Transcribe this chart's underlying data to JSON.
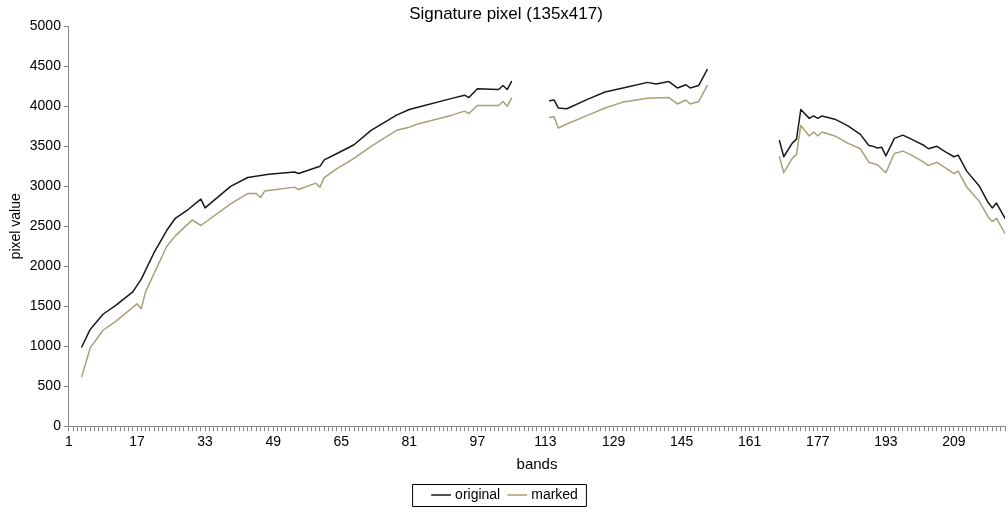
{
  "chart_data": {
    "type": "line",
    "title": "Signature pixel (135x417)",
    "xlabel": "bands",
    "ylabel": "pixel value",
    "xlim": [
      1,
      221
    ],
    "ylim": [
      0,
      5000
    ],
    "yticks": [
      0,
      500,
      1000,
      1500,
      2000,
      2500,
      3000,
      3500,
      4000,
      4500,
      5000
    ],
    "xticks": [
      1,
      {
        "value": 2,
        "label": null
      },
      {
        "value": 3,
        "label": null
      },
      {
        "value": 4,
        "label": null
      },
      {
        "value": 5,
        "label": null
      },
      {
        "value": 6,
        "label": null
      },
      {
        "value": 7,
        "label": null
      },
      {
        "value": 8,
        "label": null
      },
      {
        "value": 9,
        "label": null
      },
      {
        "value": 10,
        "label": null
      },
      {
        "value": 11,
        "label": null
      },
      {
        "value": 12,
        "label": null
      },
      {
        "value": 13,
        "label": null
      },
      {
        "value": 14,
        "label": null
      },
      {
        "value": 15,
        "label": null
      },
      {
        "value": 16,
        "label": null
      },
      17,
      {
        "value": 18,
        "label": null
      },
      {
        "value": 19,
        "label": null
      },
      {
        "value": 20,
        "label": null
      },
      {
        "value": 21,
        "label": null
      },
      {
        "value": 22,
        "label": null
      },
      {
        "value": 23,
        "label": null
      },
      {
        "value": 24,
        "label": null
      },
      {
        "value": 25,
        "label": null
      },
      {
        "value": 26,
        "label": null
      },
      {
        "value": 27,
        "label": null
      },
      {
        "value": 28,
        "label": null
      },
      {
        "value": 29,
        "label": null
      },
      {
        "value": 30,
        "label": null
      },
      {
        "value": 31,
        "label": null
      },
      {
        "value": 32,
        "label": null
      },
      33,
      {
        "value": 34,
        "label": null
      },
      {
        "value": 35,
        "label": null
      },
      {
        "value": 36,
        "label": null
      },
      {
        "value": 37,
        "label": null
      },
      {
        "value": 38,
        "label": null
      },
      {
        "value": 39,
        "label": null
      },
      {
        "value": 40,
        "label": null
      },
      {
        "value": 41,
        "label": null
      },
      {
        "value": 42,
        "label": null
      },
      {
        "value": 43,
        "label": null
      },
      {
        "value": 44,
        "label": null
      },
      {
        "value": 45,
        "label": null
      },
      {
        "value": 46,
        "label": null
      },
      {
        "value": 47,
        "label": null
      },
      {
        "value": 48,
        "label": null
      },
      49,
      {
        "value": 50,
        "label": null
      },
      {
        "value": 51,
        "label": null
      },
      {
        "value": 52,
        "label": null
      },
      {
        "value": 53,
        "label": null
      },
      {
        "value": 54,
        "label": null
      },
      {
        "value": 55,
        "label": null
      },
      {
        "value": 56,
        "label": null
      },
      {
        "value": 57,
        "label": null
      },
      {
        "value": 58,
        "label": null
      },
      {
        "value": 59,
        "label": null
      },
      {
        "value": 60,
        "label": null
      },
      {
        "value": 61,
        "label": null
      },
      {
        "value": 62,
        "label": null
      },
      {
        "value": 63,
        "label": null
      },
      {
        "value": 64,
        "label": null
      },
      65,
      {
        "value": 66,
        "label": null
      },
      {
        "value": 67,
        "label": null
      },
      {
        "value": 68,
        "label": null
      },
      {
        "value": 69,
        "label": null
      },
      {
        "value": 70,
        "label": null
      },
      {
        "value": 71,
        "label": null
      },
      {
        "value": 72,
        "label": null
      },
      {
        "value": 73,
        "label": null
      },
      {
        "value": 74,
        "label": null
      },
      {
        "value": 75,
        "label": null
      },
      {
        "value": 76,
        "label": null
      },
      {
        "value": 77,
        "label": null
      },
      {
        "value": 78,
        "label": null
      },
      {
        "value": 79,
        "label": null
      },
      {
        "value": 80,
        "label": null
      },
      81,
      {
        "value": 82,
        "label": null
      },
      {
        "value": 83,
        "label": null
      },
      {
        "value": 84,
        "label": null
      },
      {
        "value": 85,
        "label": null
      },
      {
        "value": 86,
        "label": null
      },
      {
        "value": 87,
        "label": null
      },
      {
        "value": 88,
        "label": null
      },
      {
        "value": 89,
        "label": null
      },
      {
        "value": 90,
        "label": null
      },
      {
        "value": 91,
        "label": null
      },
      {
        "value": 92,
        "label": null
      },
      {
        "value": 93,
        "label": null
      },
      {
        "value": 94,
        "label": null
      },
      {
        "value": 95,
        "label": null
      },
      {
        "value": 96,
        "label": null
      },
      97,
      {
        "value": 98,
        "label": null
      },
      {
        "value": 99,
        "label": null
      },
      {
        "value": 100,
        "label": null
      },
      {
        "value": 101,
        "label": null
      },
      {
        "value": 102,
        "label": null
      },
      {
        "value": 103,
        "label": null
      },
      {
        "value": 104,
        "label": null
      },
      {
        "value": 105,
        "label": null
      },
      {
        "value": 106,
        "label": null
      },
      {
        "value": 107,
        "label": null
      },
      {
        "value": 108,
        "label": null
      },
      {
        "value": 109,
        "label": null
      },
      {
        "value": 110,
        "label": null
      },
      {
        "value": 111,
        "label": null
      },
      {
        "value": 112,
        "label": null
      },
      113,
      {
        "value": 114,
        "label": null
      },
      {
        "value": 115,
        "label": null
      },
      {
        "value": 116,
        "label": null
      },
      {
        "value": 117,
        "label": null
      },
      {
        "value": 118,
        "label": null
      },
      {
        "value": 119,
        "label": null
      },
      {
        "value": 120,
        "label": null
      },
      {
        "value": 121,
        "label": null
      },
      {
        "value": 122,
        "label": null
      },
      {
        "value": 123,
        "label": null
      },
      {
        "value": 124,
        "label": null
      },
      {
        "value": 125,
        "label": null
      },
      {
        "value": 126,
        "label": null
      },
      {
        "value": 127,
        "label": null
      },
      {
        "value": 128,
        "label": null
      },
      129,
      {
        "value": 130,
        "label": null
      },
      {
        "value": 131,
        "label": null
      },
      {
        "value": 132,
        "label": null
      },
      {
        "value": 133,
        "label": null
      },
      {
        "value": 134,
        "label": null
      },
      {
        "value": 135,
        "label": null
      },
      {
        "value": 136,
        "label": null
      },
      {
        "value": 137,
        "label": null
      },
      {
        "value": 138,
        "label": null
      },
      {
        "value": 139,
        "label": null
      },
      {
        "value": 140,
        "label": null
      },
      {
        "value": 141,
        "label": null
      },
      {
        "value": 142,
        "label": null
      },
      {
        "value": 143,
        "label": null
      },
      {
        "value": 144,
        "label": null
      },
      145,
      {
        "value": 146,
        "label": null
      },
      {
        "value": 147,
        "label": null
      },
      {
        "value": 148,
        "label": null
      },
      {
        "value": 149,
        "label": null
      },
      {
        "value": 150,
        "label": null
      },
      {
        "value": 151,
        "label": null
      },
      {
        "value": 152,
        "label": null
      },
      {
        "value": 153,
        "label": null
      },
      {
        "value": 154,
        "label": null
      },
      {
        "value": 155,
        "label": null
      },
      {
        "value": 156,
        "label": null
      },
      {
        "value": 157,
        "label": null
      },
      {
        "value": 158,
        "label": null
      },
      {
        "value": 159,
        "label": null
      },
      {
        "value": 160,
        "label": null
      },
      161,
      {
        "value": 162,
        "label": null
      },
      {
        "value": 163,
        "label": null
      },
      {
        "value": 164,
        "label": null
      },
      {
        "value": 165,
        "label": null
      },
      {
        "value": 166,
        "label": null
      },
      {
        "value": 167,
        "label": null
      },
      {
        "value": 168,
        "label": null
      },
      {
        "value": 169,
        "label": null
      },
      {
        "value": 170,
        "label": null
      },
      {
        "value": 171,
        "label": null
      },
      {
        "value": 172,
        "label": null
      },
      {
        "value": 173,
        "label": null
      },
      {
        "value": 174,
        "label": null
      },
      {
        "value": 175,
        "label": null
      },
      {
        "value": 176,
        "label": null
      },
      177,
      {
        "value": 178,
        "label": null
      },
      {
        "value": 179,
        "label": null
      },
      {
        "value": 180,
        "label": null
      },
      {
        "value": 181,
        "label": null
      },
      {
        "value": 182,
        "label": null
      },
      {
        "value": 183,
        "label": null
      },
      {
        "value": 184,
        "label": null
      },
      {
        "value": 185,
        "label": null
      },
      {
        "value": 186,
        "label": null
      },
      {
        "value": 187,
        "label": null
      },
      {
        "value": 188,
        "label": null
      },
      {
        "value": 189,
        "label": null
      },
      {
        "value": 190,
        "label": null
      },
      {
        "value": 191,
        "label": null
      },
      {
        "value": 192,
        "label": null
      },
      193,
      {
        "value": 194,
        "label": null
      },
      {
        "value": 195,
        "label": null
      },
      {
        "value": 196,
        "label": null
      },
      {
        "value": 197,
        "label": null
      },
      {
        "value": 198,
        "label": null
      },
      {
        "value": 199,
        "label": null
      },
      {
        "value": 200,
        "label": null
      },
      {
        "value": 201,
        "label": null
      },
      {
        "value": 202,
        "label": null
      },
      {
        "value": 203,
        "label": null
      },
      {
        "value": 204,
        "label": null
      },
      {
        "value": 205,
        "label": null
      },
      {
        "value": 206,
        "label": null
      },
      {
        "value": 207,
        "label": null
      },
      {
        "value": 208,
        "label": null
      },
      209,
      {
        "value": 210,
        "label": null
      },
      {
        "value": 211,
        "label": null
      },
      {
        "value": 212,
        "label": null
      },
      {
        "value": 213,
        "label": null
      },
      {
        "value": 214,
        "label": null
      },
      {
        "value": 215,
        "label": null
      },
      {
        "value": 216,
        "label": null
      },
      {
        "value": 217,
        "label": null
      },
      {
        "value": 218,
        "label": null
      },
      {
        "value": 219,
        "label": null
      },
      {
        "value": 220,
        "label": null
      },
      {
        "value": 221,
        "label": null
      }
    ],
    "grid": false,
    "legend": "bottom",
    "marker": "none",
    "line_style": "solid",
    "series": [
      {
        "name": "original",
        "color": "#1a1a1a",
        "x": [
          4,
          6,
          9,
          12,
          16,
          18,
          21,
          24,
          26,
          29,
          32,
          33,
          39,
          43,
          48,
          54,
          55,
          60,
          61,
          64,
          68,
          72,
          78,
          81,
          83,
          91,
          94,
          95,
          97,
          102,
          103,
          104,
          105,
          109,
          114,
          115,
          116,
          118,
          123,
          127,
          132,
          137,
          139,
          142,
          144,
          146,
          147,
          149,
          151,
          160,
          168,
          169,
          171,
          172,
          173,
          175,
          176,
          177,
          178,
          181,
          184,
          187,
          189,
          190,
          191,
          192,
          193,
          195,
          197,
          199,
          202,
          203,
          205,
          207,
          209,
          210,
          212,
          215,
          217,
          218,
          219,
          221
        ],
        "values": [
          990,
          1210,
          1400,
          1510,
          1680,
          1840,
          2170,
          2450,
          2600,
          2710,
          2840,
          2730,
          3000,
          3110,
          3150,
          3180,
          3160,
          3250,
          3330,
          3410,
          3520,
          3700,
          3890,
          3960,
          3990,
          4100,
          4140,
          4110,
          4220,
          4210,
          4260,
          4210,
          4310,
          null,
          4070,
          4080,
          3980,
          3970,
          4090,
          4180,
          4240,
          4300,
          4280,
          4310,
          4230,
          4270,
          4230,
          4260,
          4460,
          null,
          3570,
          3370,
          3540,
          3590,
          3960,
          3850,
          3880,
          3850,
          3880,
          3840,
          3760,
          3650,
          3510,
          3500,
          3480,
          3490,
          3380,
          3600,
          3640,
          3590,
          3510,
          3470,
          3500,
          3430,
          3370,
          3390,
          3190,
          3000,
          2800,
          2730,
          2790,
          2600
        ]
      },
      {
        "name": "marked",
        "color": "#a8a078",
        "x": [
          4,
          6,
          9,
          12,
          17,
          18,
          19,
          24,
          26,
          30,
          32,
          39,
          43,
          45,
          46,
          47,
          54,
          55,
          59,
          60,
          61,
          64,
          68,
          72,
          78,
          81,
          83,
          91,
          94,
          95,
          97,
          102,
          103,
          104,
          105,
          109,
          114,
          115,
          116,
          118,
          123,
          127,
          131,
          137,
          142,
          144,
          146,
          147,
          149,
          151,
          160,
          168,
          169,
          171,
          172,
          173,
          175,
          176,
          177,
          178,
          181,
          184,
          187,
          189,
          191,
          193,
          195,
          197,
          199,
          202,
          203,
          205,
          207,
          209,
          210,
          212,
          215,
          217,
          218,
          219,
          221
        ],
        "values": [
          620,
          980,
          1200,
          1310,
          1530,
          1470,
          1680,
          2250,
          2380,
          2580,
          2510,
          2780,
          2910,
          2910,
          2860,
          2940,
          2990,
          2960,
          3040,
          2990,
          3110,
          3220,
          3350,
          3500,
          3700,
          3740,
          3780,
          3890,
          3940,
          3910,
          4010,
          4010,
          4060,
          4000,
          4100,
          null,
          3860,
          3870,
          3730,
          3780,
          3890,
          3980,
          4050,
          4100,
          4110,
          4030,
          4080,
          4030,
          4060,
          4260,
          null,
          3370,
          3170,
          3350,
          3400,
          3760,
          3630,
          3680,
          3630,
          3680,
          3630,
          3540,
          3470,
          3300,
          3270,
          3170,
          3410,
          3440,
          3390,
          3300,
          3260,
          3300,
          3230,
          3160,
          3190,
          2990,
          2810,
          2620,
          2560,
          2600,
          2410
        ]
      }
    ]
  }
}
